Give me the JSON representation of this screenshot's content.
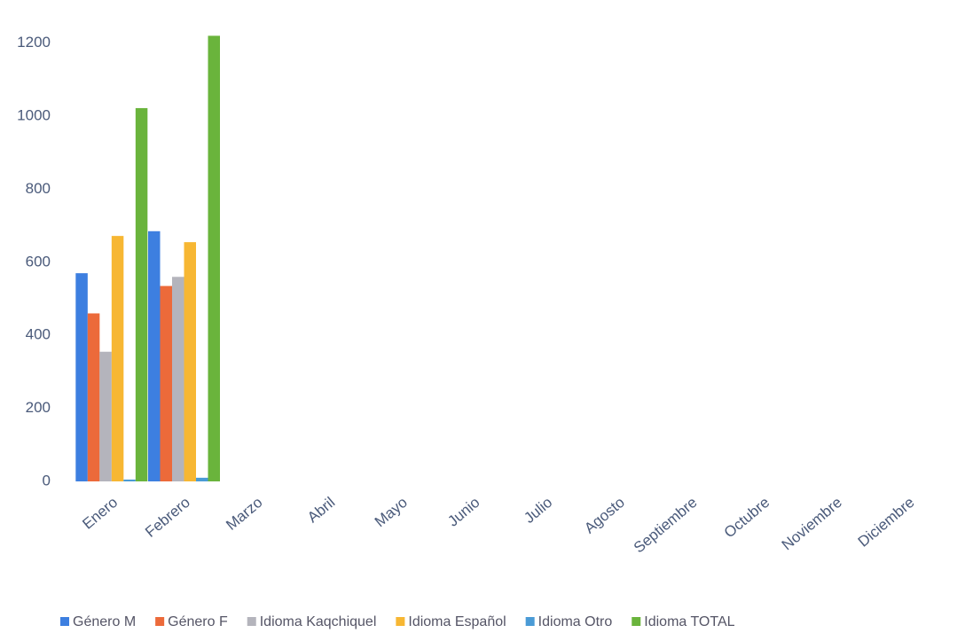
{
  "chart_data": {
    "type": "bar",
    "categories": [
      "Enero",
      "Febrero",
      "Marzo",
      "Abril",
      "Mayo",
      "Junio",
      "Julio",
      "Agosto",
      "Septiembre",
      "Octubre",
      "Noviembre",
      "Diciembre"
    ],
    "series": [
      {
        "name": "Género M",
        "color": "#3d7fe0",
        "values": [
          570,
          685,
          0,
          0,
          0,
          0,
          0,
          0,
          0,
          0,
          0,
          0
        ]
      },
      {
        "name": "Género F",
        "color": "#ec6a3a",
        "values": [
          460,
          535,
          0,
          0,
          0,
          0,
          0,
          0,
          0,
          0,
          0,
          0
        ]
      },
      {
        "name": "Idioma Kaqchiquel",
        "color": "#b4b4bc",
        "values": [
          355,
          560,
          0,
          0,
          0,
          0,
          0,
          0,
          0,
          0,
          0,
          0
        ]
      },
      {
        "name": "Idioma Español",
        "color": "#f7b733",
        "values": [
          672,
          655,
          0,
          0,
          0,
          0,
          0,
          0,
          0,
          0,
          0,
          0
        ]
      },
      {
        "name": "Idioma Otro",
        "color": "#4a9bd6",
        "values": [
          5,
          10,
          0,
          0,
          0,
          0,
          0,
          0,
          0,
          0,
          0,
          0
        ]
      },
      {
        "name": "Idioma TOTAL",
        "color": "#6ab43c",
        "values": [
          1022,
          1220,
          0,
          0,
          0,
          0,
          0,
          0,
          0,
          0,
          0,
          0
        ]
      }
    ],
    "ylim": [
      0,
      1250
    ],
    "yticks": [
      0,
      200,
      400,
      600,
      800,
      1000,
      1200
    ],
    "grid": false
  }
}
